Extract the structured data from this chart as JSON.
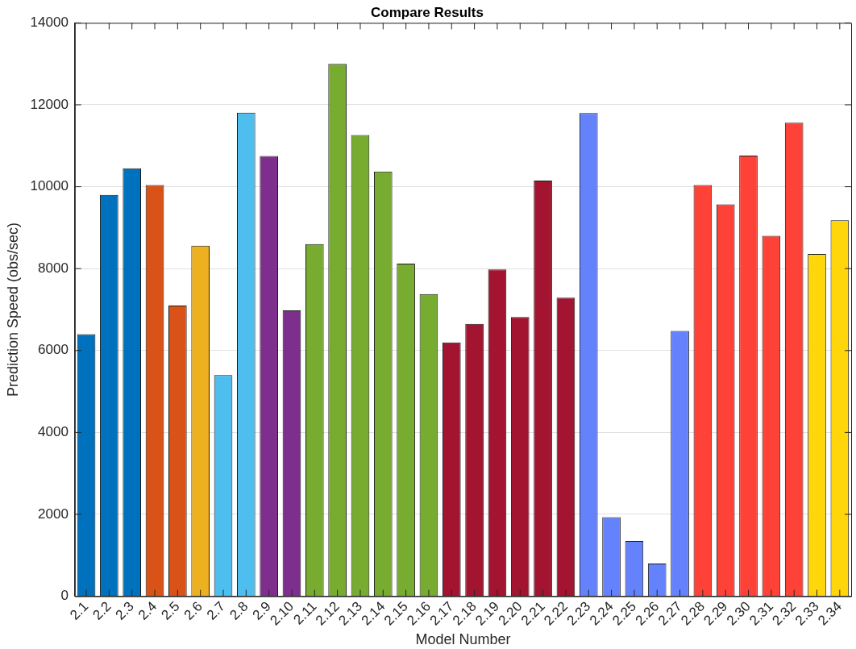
{
  "chart_data": {
    "type": "bar",
    "title": "Compare Results",
    "xlabel": "Model Number",
    "ylabel": "Prediction Speed (obs/sec)",
    "categories": [
      "2.1",
      "2.2",
      "2.3",
      "2.4",
      "2.5",
      "2.6",
      "2.7",
      "2.8",
      "2.9",
      "2.10",
      "2.11",
      "2.12",
      "2.13",
      "2.14",
      "2.15",
      "2.16",
      "2.17",
      "2.18",
      "2.19",
      "2.20",
      "2.21",
      "2.22",
      "2.23",
      "2.24",
      "2.25",
      "2.26",
      "2.27",
      "2.28",
      "2.29",
      "2.30",
      "2.31",
      "2.32",
      "2.33",
      "2.34"
    ],
    "values": [
      6400,
      9800,
      10450,
      10040,
      7100,
      8560,
      5400,
      11810,
      10750,
      6980,
      8600,
      13000,
      11260,
      10370,
      8120,
      7380,
      6200,
      6650,
      7980,
      6820,
      10150,
      7290,
      11800,
      1930,
      1350,
      800,
      6480,
      10040,
      9570,
      10760,
      8800,
      11560,
      8360,
      9180
    ],
    "colors": [
      "#0072bd",
      "#0072bd",
      "#0072bd",
      "#d95319",
      "#d95319",
      "#edb120",
      "#4dbeee",
      "#4dbeee",
      "#7e2f8e",
      "#7e2f8e",
      "#77ac30",
      "#77ac30",
      "#77ac30",
      "#77ac30",
      "#77ac30",
      "#77ac30",
      "#a2142f",
      "#a2142f",
      "#a2142f",
      "#a2142f",
      "#a2142f",
      "#a2142f",
      "#6582fd",
      "#6582fd",
      "#6582fd",
      "#6582fd",
      "#6582fd",
      "#ff4238",
      "#ff4238",
      "#ff4238",
      "#ff4238",
      "#ff4238",
      "#ffd60a",
      "#ffd60a"
    ],
    "ylim": [
      0,
      14000
    ],
    "yticks": [
      0,
      2000,
      4000,
      6000,
      8000,
      10000,
      12000,
      14000
    ],
    "grid": "y",
    "legend": false
  }
}
